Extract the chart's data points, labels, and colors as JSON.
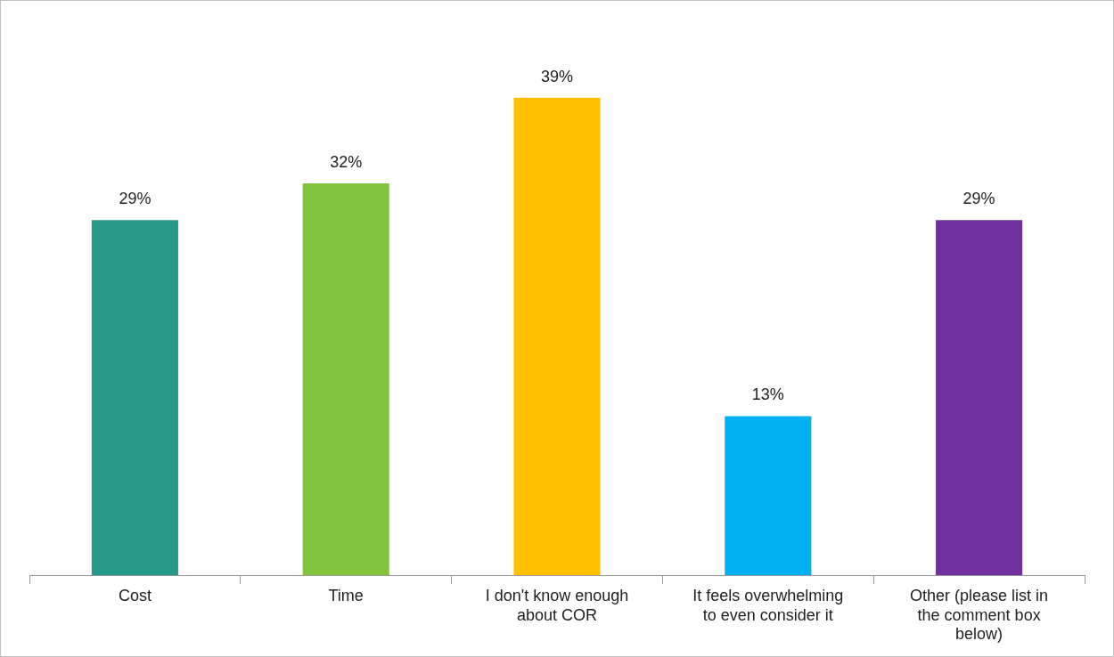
{
  "chart_data": {
    "type": "bar",
    "categories": [
      "Cost",
      "Time",
      "I don't know enough about COR",
      "It feels overwhelming to even consider it",
      "Other (please list in the comment box below)"
    ],
    "values": [
      29,
      32,
      39,
      13,
      29
    ],
    "colors": [
      "#26998a",
      "#82c43c",
      "#ffc000",
      "#00b0f0",
      "#7030a0"
    ],
    "value_labels": [
      "29%",
      "32%",
      "39%",
      "13%",
      "29%"
    ],
    "grid": false,
    "legend": false
  }
}
